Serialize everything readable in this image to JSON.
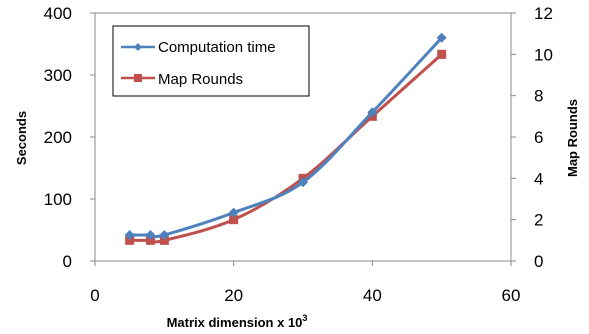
{
  "chart_data": {
    "type": "line",
    "xlabel": "Matrix dimension x 10",
    "xlabel_superscript": "3",
    "ylabel_left": "Seconds",
    "ylabel_right": "Map Rounds",
    "xlim": [
      0,
      60
    ],
    "x_ticks": [
      0,
      20,
      40,
      60
    ],
    "ylim_left": [
      0,
      400
    ],
    "y_ticks_left": [
      0,
      100,
      200,
      300,
      400
    ],
    "ylim_right": [
      0,
      12
    ],
    "y_ticks_right": [
      0,
      2,
      4,
      6,
      8,
      10,
      12
    ],
    "grid": false,
    "legend_position": "top-left",
    "series": [
      {
        "name": "Computation time",
        "axis": "left",
        "color": "#4F81BD",
        "marker": "diamond",
        "x": [
          5,
          8,
          10,
          20,
          30,
          40,
          50
        ],
        "y": [
          42,
          42,
          42,
          78,
          127,
          240,
          360
        ]
      },
      {
        "name": "Map Rounds",
        "axis": "right",
        "color": "#C0504D",
        "marker": "square",
        "x": [
          5,
          8,
          10,
          20,
          30,
          40,
          50
        ],
        "y": [
          1,
          1,
          1,
          2,
          4,
          7,
          10
        ]
      }
    ]
  }
}
